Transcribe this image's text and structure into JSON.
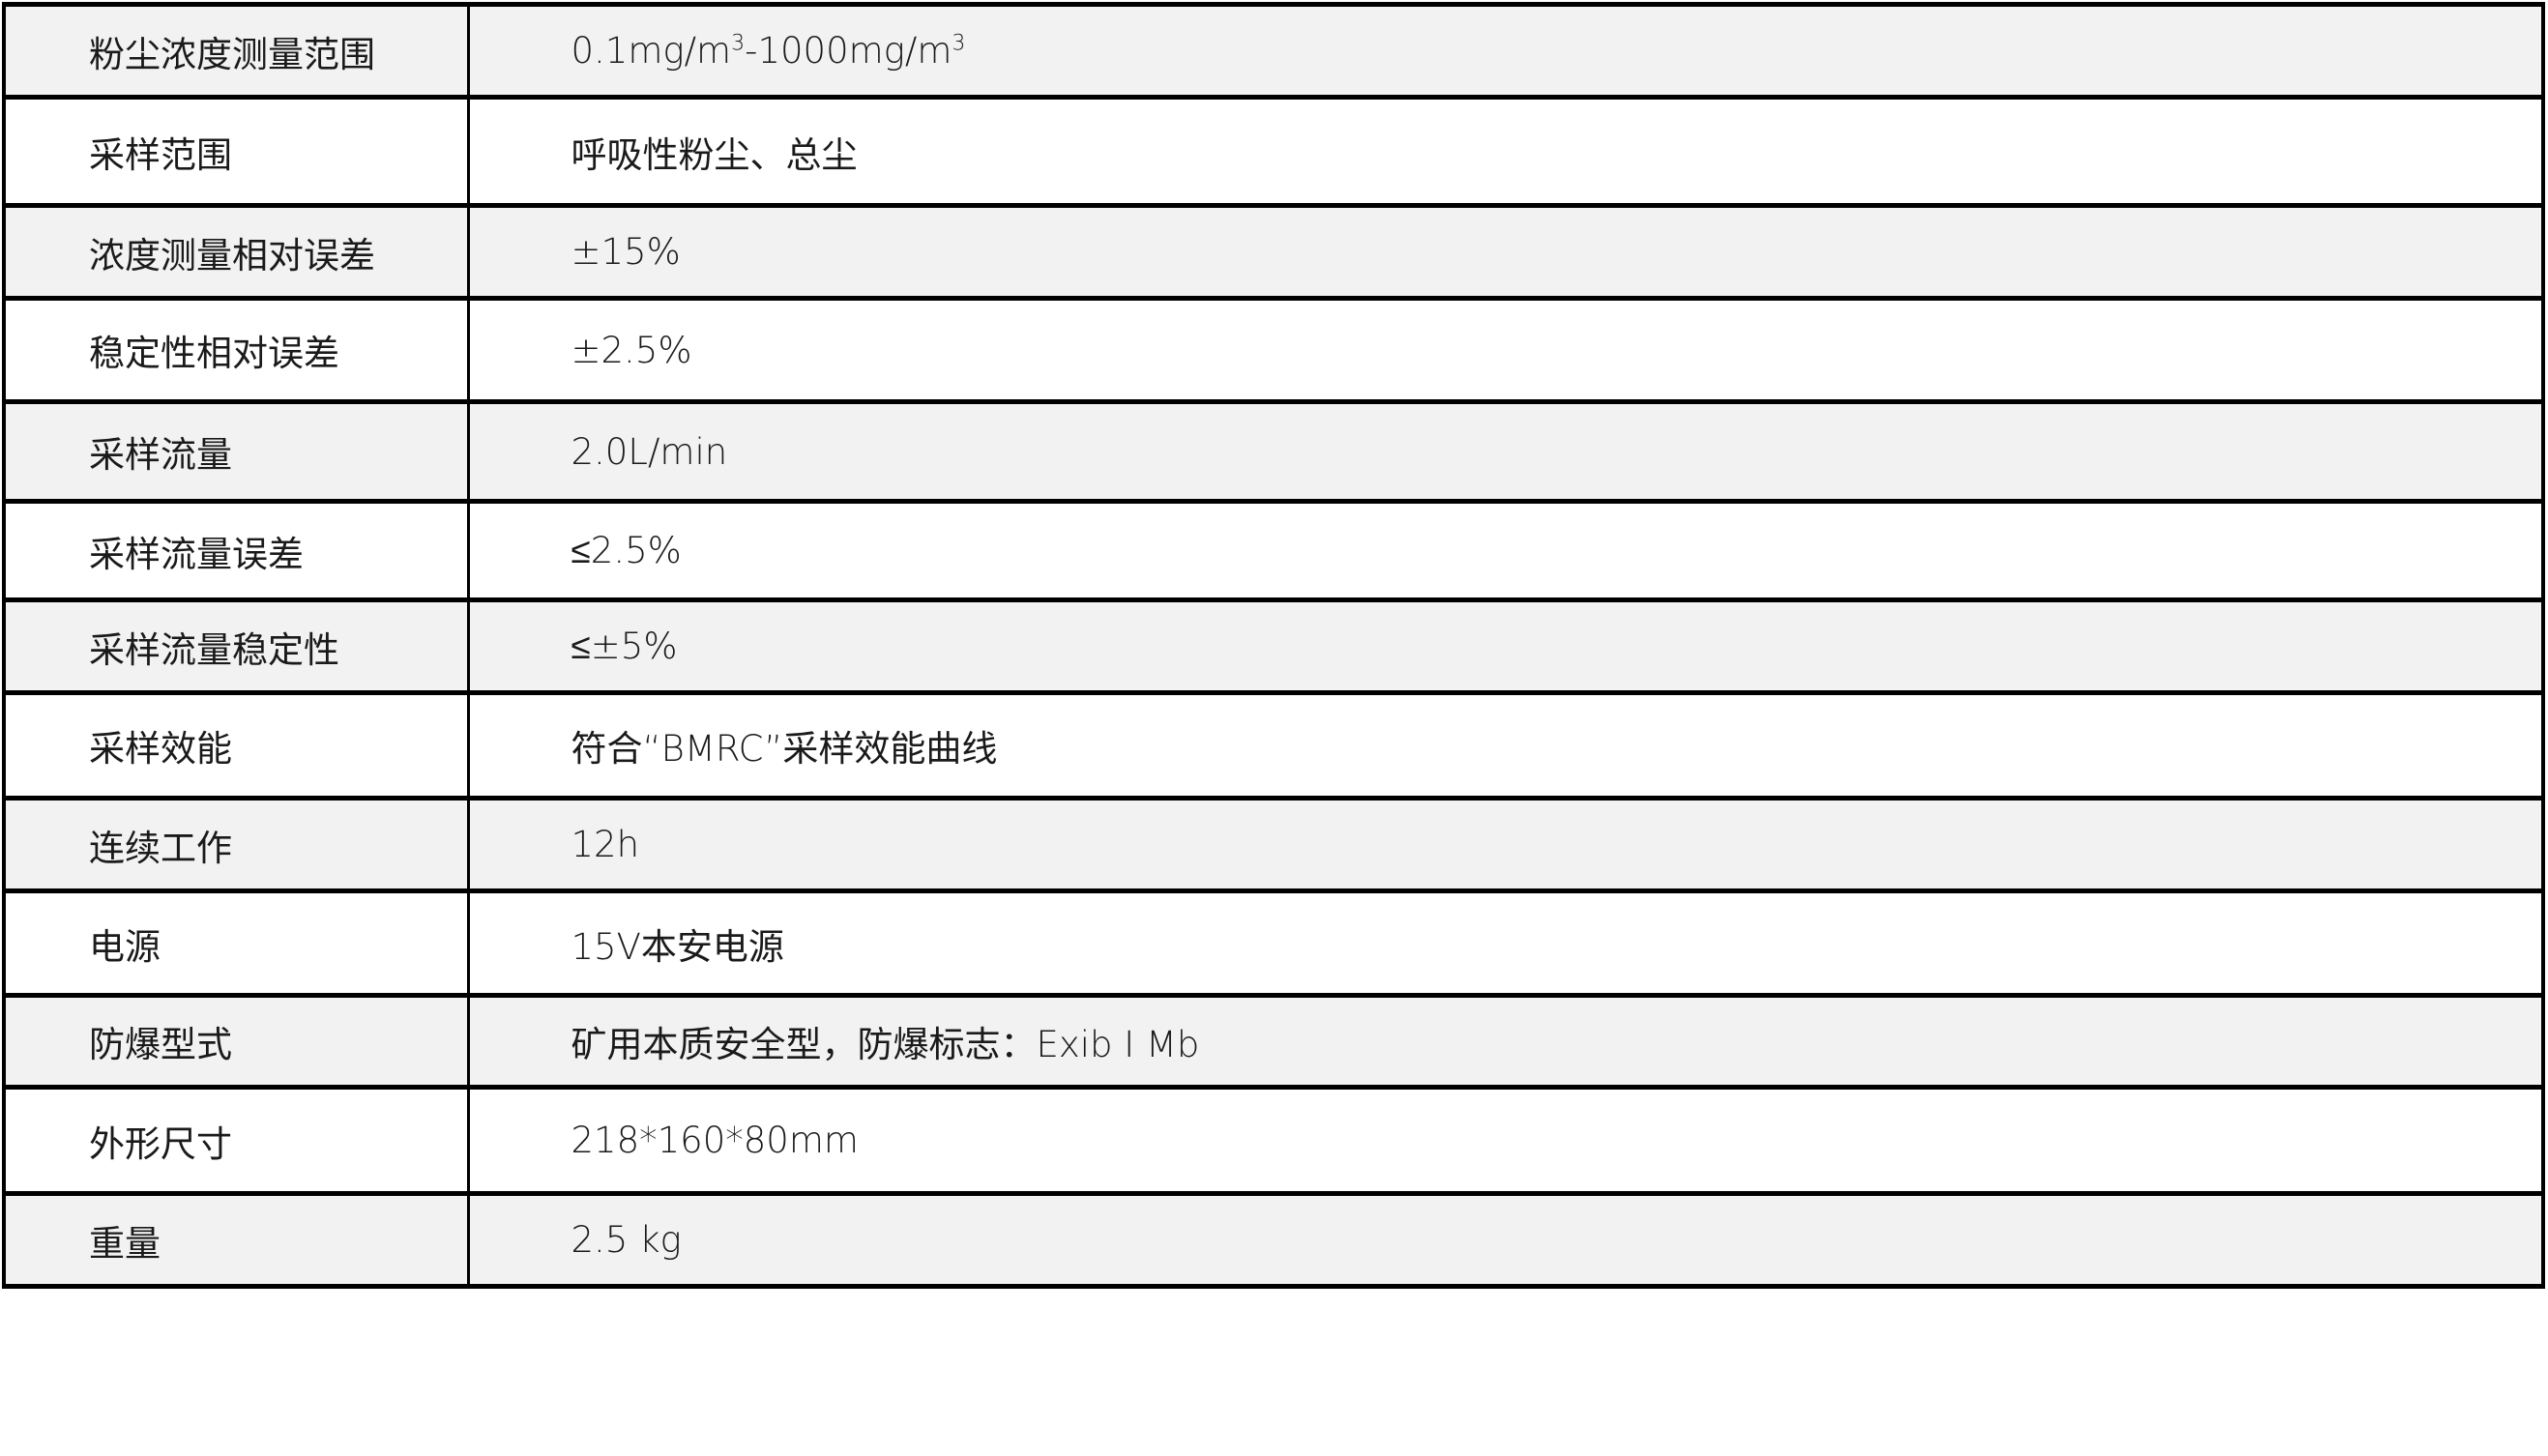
{
  "rows": [
    {
      "label": "粉尘浓度测量范围",
      "value_a": "0.1mg/m",
      "sup_a": "3",
      "value_b": "-1000mg/m",
      "sup_b": "3"
    },
    {
      "label": "采样范围",
      "value": "呼吸性粉尘、总尘"
    },
    {
      "label": "浓度测量相对误差",
      "value": "±15%"
    },
    {
      "label": "稳定性相对误差",
      "value": "±2.5%"
    },
    {
      "label": "采样流量",
      "value": "2.0L/min"
    },
    {
      "label": "采样流量误差",
      "value": "≤2.5%"
    },
    {
      "label": "采样流量稳定性",
      "value": "≤±5%"
    },
    {
      "label": "采样效能",
      "value": "符合“BMRC”采样效能曲线"
    },
    {
      "label": "连续工作",
      "value": "12h"
    },
    {
      "label": "电源",
      "value": "15V本安电源"
    },
    {
      "label": "防爆型式",
      "value": "矿用本质安全型，防爆标志：Exib I Mb"
    },
    {
      "label": "外形尺寸",
      "value": "218*160*80mm"
    },
    {
      "label": "重量",
      "value": "2.5 kg"
    }
  ],
  "colors": {
    "row_alt": "#f2f2f2",
    "row": "#ffffff",
    "border": "#000000"
  }
}
